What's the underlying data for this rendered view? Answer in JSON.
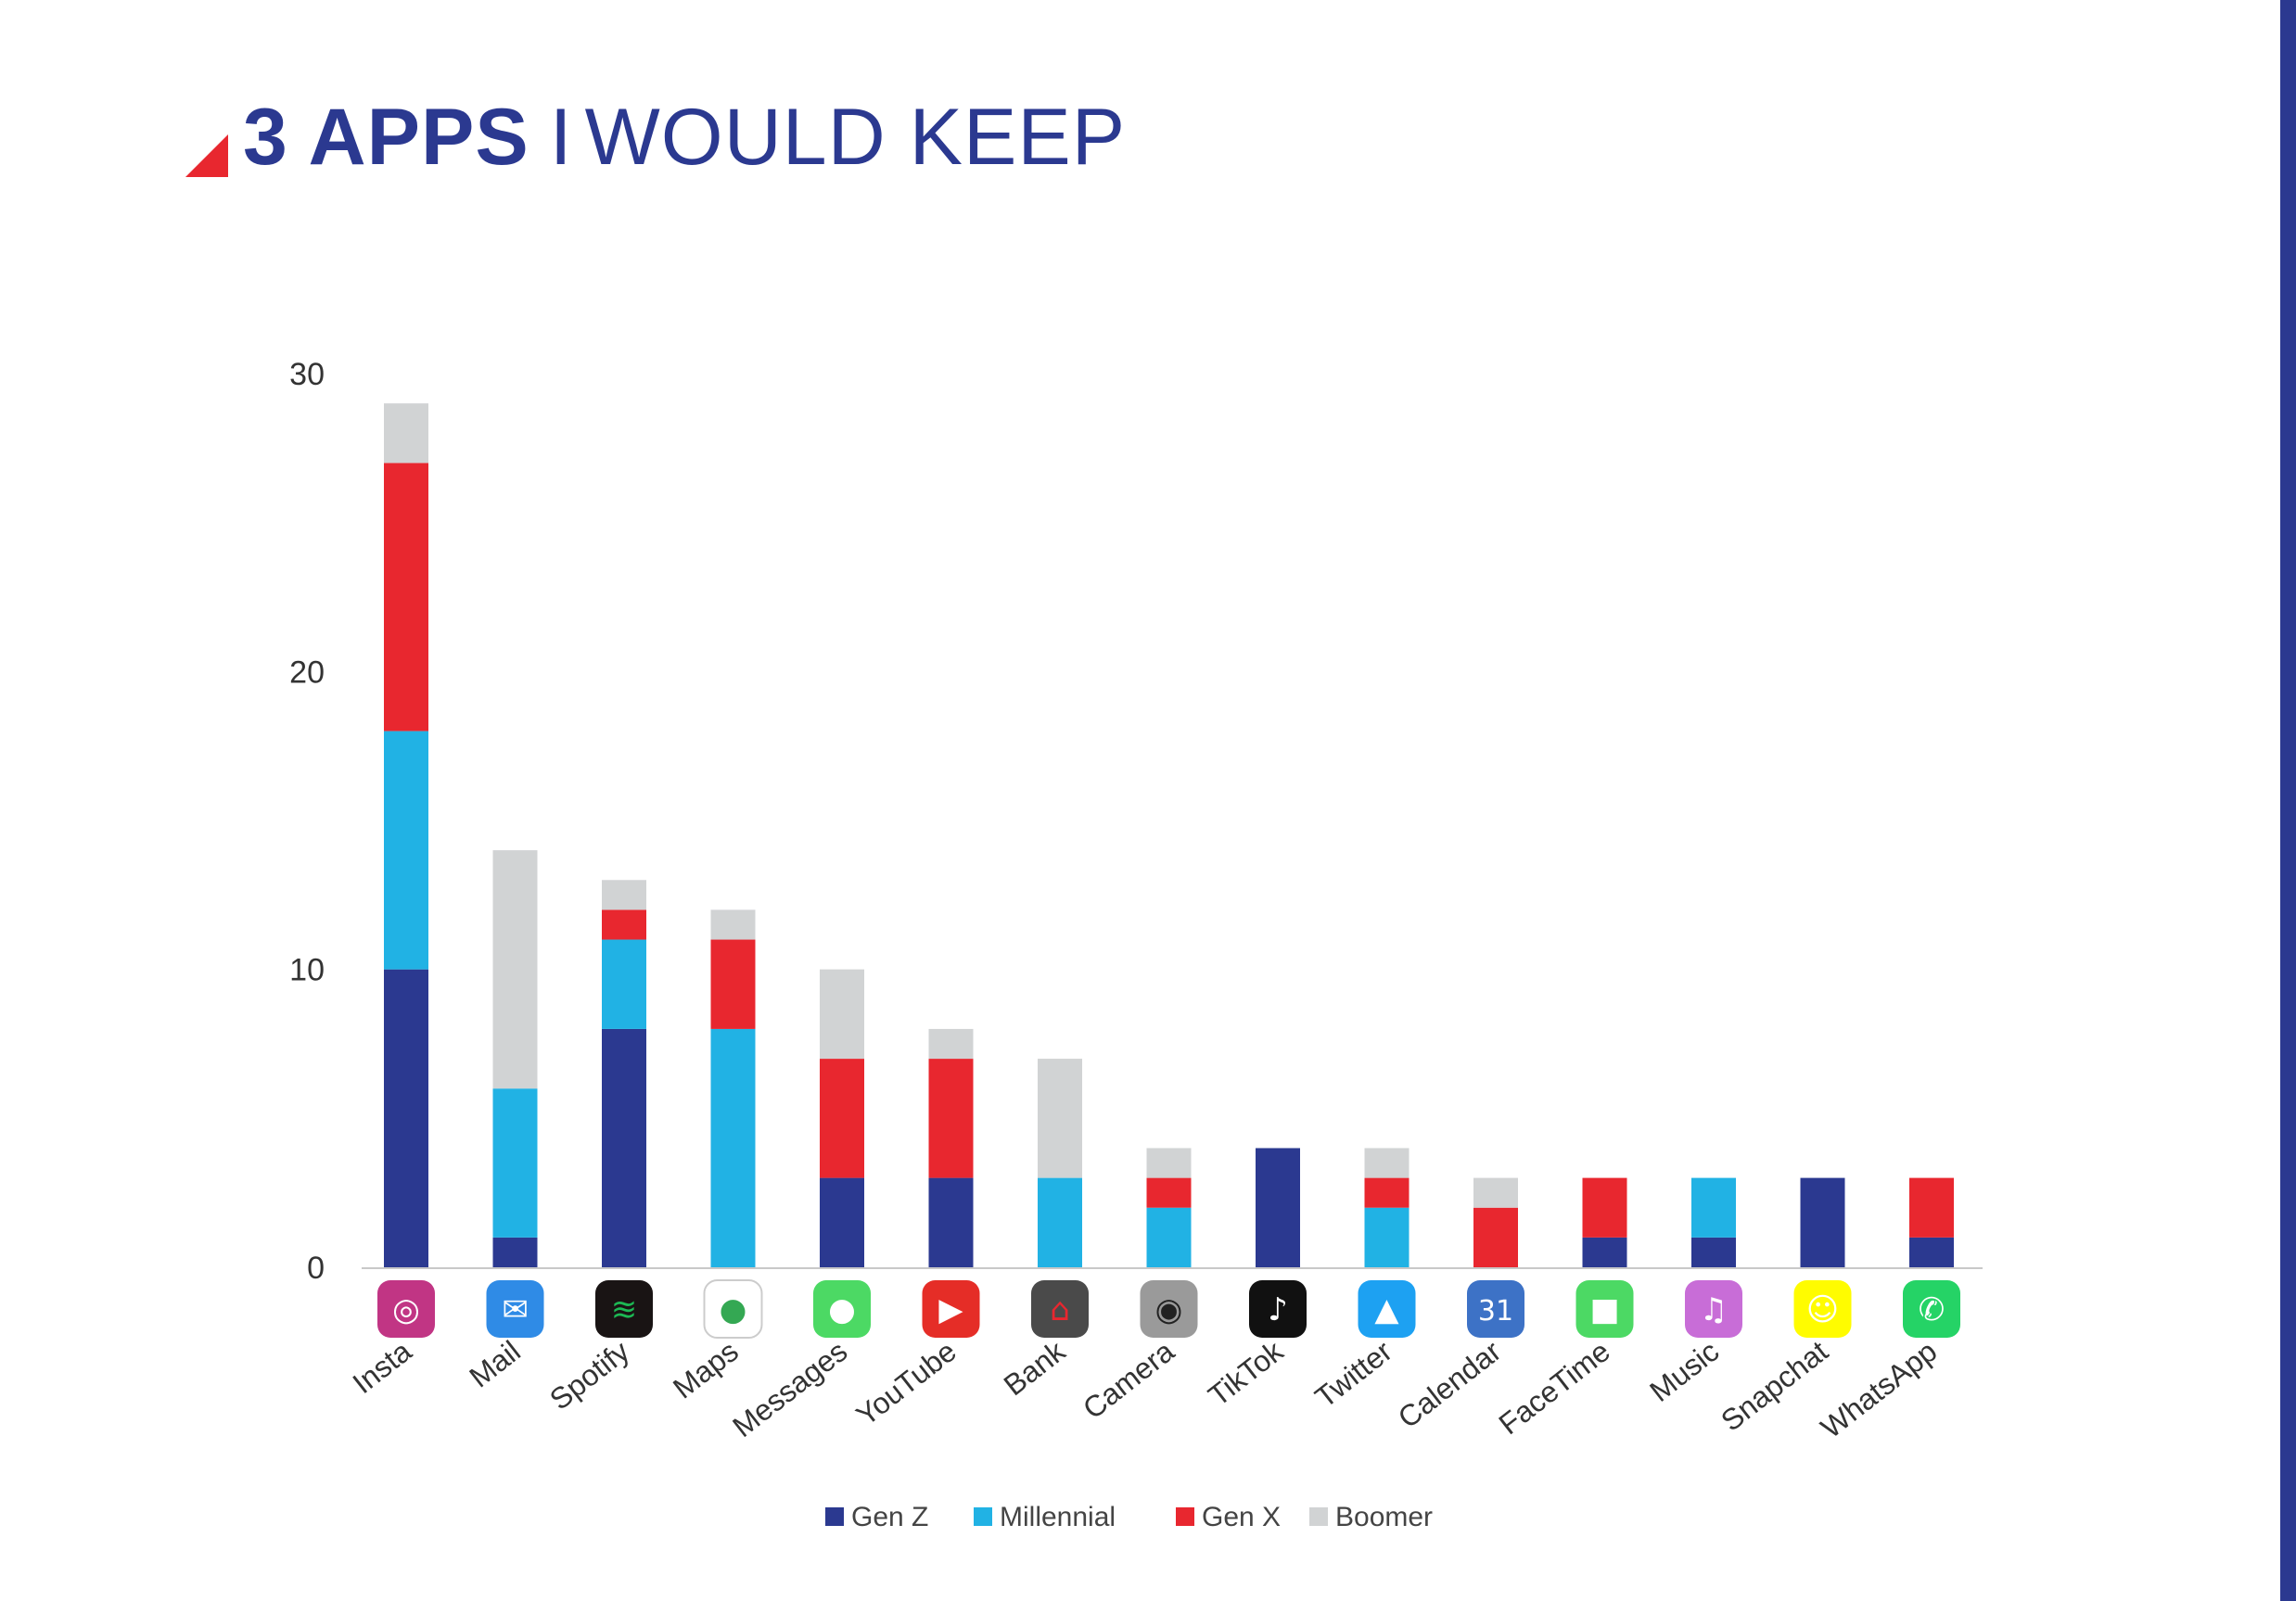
{
  "title": {
    "bold": "3 APPS",
    "separator": "I",
    "light": "WOULD KEEP"
  },
  "chart_data": {
    "type": "bar",
    "stacked": true,
    "ylim": [
      0,
      30
    ],
    "yticks": [
      0,
      10,
      20,
      30
    ],
    "categories": [
      "Insta",
      "Mail",
      "Spotify",
      "Maps",
      "Messages",
      "YouTube",
      "Bank",
      "Camera",
      "TikTok",
      "Twitter",
      "Calendar",
      "FaceTime",
      "Music",
      "Snapchat",
      "WhatsApp"
    ],
    "series": [
      {
        "name": "Gen Z",
        "color": "#2b3990",
        "values": [
          10,
          1,
          8,
          0,
          3,
          3,
          0,
          0,
          4,
          0,
          0,
          1,
          1,
          3,
          1
        ]
      },
      {
        "name": "Millennial",
        "color": "#21b2e4",
        "values": [
          8,
          5,
          3,
          8,
          0,
          0,
          3,
          2,
          0,
          2,
          0,
          0,
          2,
          0,
          0
        ]
      },
      {
        "name": "Gen X",
        "color": "#e8272f",
        "values": [
          9,
          0,
          1,
          3,
          4,
          4,
          0,
          1,
          0,
          1,
          2,
          2,
          0,
          0,
          2
        ]
      },
      {
        "name": "Boomer",
        "color": "#d1d3d4",
        "values": [
          2,
          8,
          1,
          1,
          3,
          1,
          4,
          1,
          0,
          1,
          1,
          0,
          0,
          0,
          0
        ]
      }
    ],
    "legend": "bottom-center",
    "grid": false,
    "app_icons": [
      {
        "category": "Insta",
        "icon": "instagram-icon",
        "bg": "#c13584",
        "glyph": "◎",
        "fg": "#ffffff"
      },
      {
        "category": "Mail",
        "icon": "mail-icon",
        "bg": "#2f8be6",
        "glyph": "✉",
        "fg": "#ffffff"
      },
      {
        "category": "Spotify",
        "icon": "spotify-icon",
        "bg": "#191414",
        "glyph": "≋",
        "fg": "#1db954"
      },
      {
        "category": "Maps",
        "icon": "maps-icon",
        "bg": "#ffffff",
        "glyph": "●",
        "fg": "#34a853"
      },
      {
        "category": "Messages",
        "icon": "messages-icon",
        "bg": "#4cd964",
        "glyph": "●",
        "fg": "#ffffff"
      },
      {
        "category": "YouTube",
        "icon": "youtube-icon",
        "bg": "#e52d27",
        "glyph": "▶",
        "fg": "#ffffff"
      },
      {
        "category": "Bank",
        "icon": "bank-icon",
        "bg": "#4a4a4a",
        "glyph": "⌂",
        "fg": "#e8272f"
      },
      {
        "category": "Camera",
        "icon": "camera-icon",
        "bg": "#9a9a9a",
        "glyph": "◉",
        "fg": "#222222"
      },
      {
        "category": "TikTok",
        "icon": "tiktok-icon",
        "bg": "#111111",
        "glyph": "♪",
        "fg": "#ffffff"
      },
      {
        "category": "Twitter",
        "icon": "twitter-icon",
        "bg": "#1da1f2",
        "glyph": "▲",
        "fg": "#ffffff"
      },
      {
        "category": "Calendar",
        "icon": "calendar-icon",
        "bg": "#3d72c6",
        "glyph": "31",
        "fg": "#ffffff"
      },
      {
        "category": "FaceTime",
        "icon": "facetime-icon",
        "bg": "#4cd964",
        "glyph": "■",
        "fg": "#ffffff"
      },
      {
        "category": "Music",
        "icon": "music-icon",
        "bg": "#c86dd7",
        "glyph": "♫",
        "fg": "#ffffff"
      },
      {
        "category": "Snapchat",
        "icon": "snapchat-icon",
        "bg": "#fffc00",
        "glyph": "☺",
        "fg": "#ffffff"
      },
      {
        "category": "WhatsApp",
        "icon": "whatsapp-icon",
        "bg": "#25d366",
        "glyph": "✆",
        "fg": "#ffffff"
      }
    ]
  }
}
